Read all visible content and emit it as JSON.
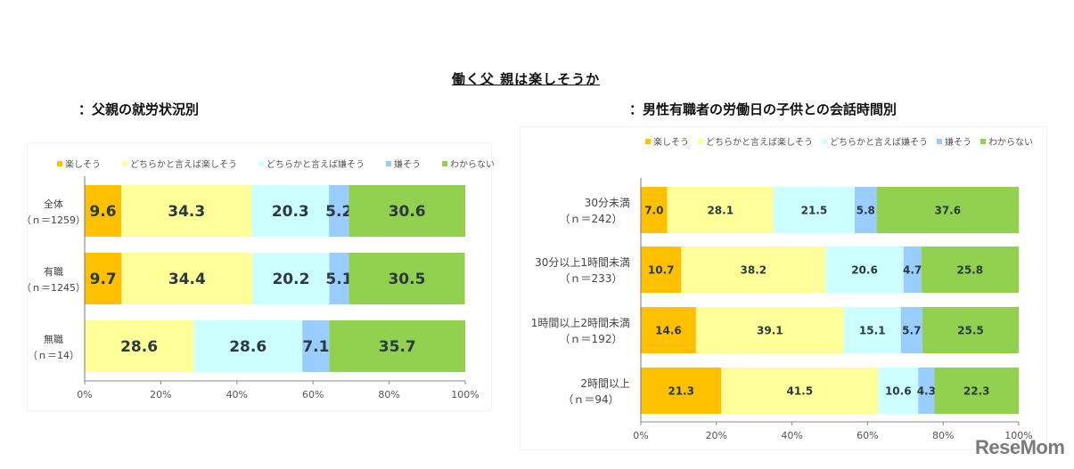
{
  "page": {
    "main_title": "働く父 親は楽しそうか",
    "watermark": "ReseMom"
  },
  "colors": {
    "series": [
      "#ffc000",
      "#ffff99",
      "#ccffff",
      "#99ccff",
      "#92d050"
    ]
  },
  "chart_data": [
    {
      "type": "bar",
      "orientation": "horizontal-stacked-100",
      "title": "：父親の就労状況別",
      "legend": [
        "楽しそう",
        "どちらかと言えば楽しそう",
        "どちらかと言えば嫌そう",
        "嫌そう",
        "わからない"
      ],
      "legend_position": "top",
      "categories": [
        {
          "label": "全体",
          "n": "（ｎ＝1259）"
        },
        {
          "label": "有職",
          "n": "（ｎ＝1245）"
        },
        {
          "label": "無職",
          "n": "（ｎ＝14）"
        }
      ],
      "series": [
        {
          "name": "楽しそう",
          "values": [
            9.6,
            9.7,
            0
          ]
        },
        {
          "name": "どちらかと言えば楽しそう",
          "values": [
            34.3,
            34.4,
            28.6
          ]
        },
        {
          "name": "どちらかと言えば嫌そう",
          "values": [
            20.3,
            20.2,
            28.6
          ]
        },
        {
          "name": "嫌そう",
          "values": [
            5.2,
            5.1,
            7.1
          ]
        },
        {
          "name": "わからない",
          "values": [
            30.6,
            30.5,
            35.7
          ]
        }
      ],
      "xlim": [
        0,
        100
      ],
      "xticks": [
        "0%",
        "20%",
        "40%",
        "60%",
        "80%",
        "100%"
      ],
      "grid": false
    },
    {
      "type": "bar",
      "orientation": "horizontal-stacked-100",
      "title": "：男性有職者の労働日の子供との会話時間別",
      "legend": [
        "楽しそう",
        "どちらかと言えば楽しそう",
        "どちらかと言えば嫌そう",
        "嫌そう",
        "わからない"
      ],
      "legend_position": "top",
      "categories": [
        {
          "label": "30分未満",
          "n": "（ｎ＝242）"
        },
        {
          "label": "30分以上1時間未満",
          "n": "（ｎ＝233）"
        },
        {
          "label": "1時間以上2時間未満",
          "n": "（ｎ＝192）"
        },
        {
          "label": "2時間以上",
          "n": "（ｎ＝94）"
        }
      ],
      "series": [
        {
          "name": "楽しそう",
          "values": [
            7.0,
            10.7,
            14.6,
            21.3
          ]
        },
        {
          "name": "どちらかと言えば楽しそう",
          "values": [
            28.1,
            38.2,
            39.1,
            41.5
          ]
        },
        {
          "name": "どちらかと言えば嫌そう",
          "values": [
            21.5,
            20.6,
            15.1,
            10.6
          ]
        },
        {
          "name": "嫌そう",
          "values": [
            5.8,
            4.7,
            5.7,
            4.3
          ]
        },
        {
          "name": "わからない",
          "values": [
            37.6,
            25.8,
            25.5,
            22.3
          ]
        }
      ],
      "xlim": [
        0,
        100
      ],
      "xticks": [
        "0%",
        "20%",
        "40%",
        "60%",
        "80%",
        "100%"
      ],
      "grid": false
    }
  ]
}
